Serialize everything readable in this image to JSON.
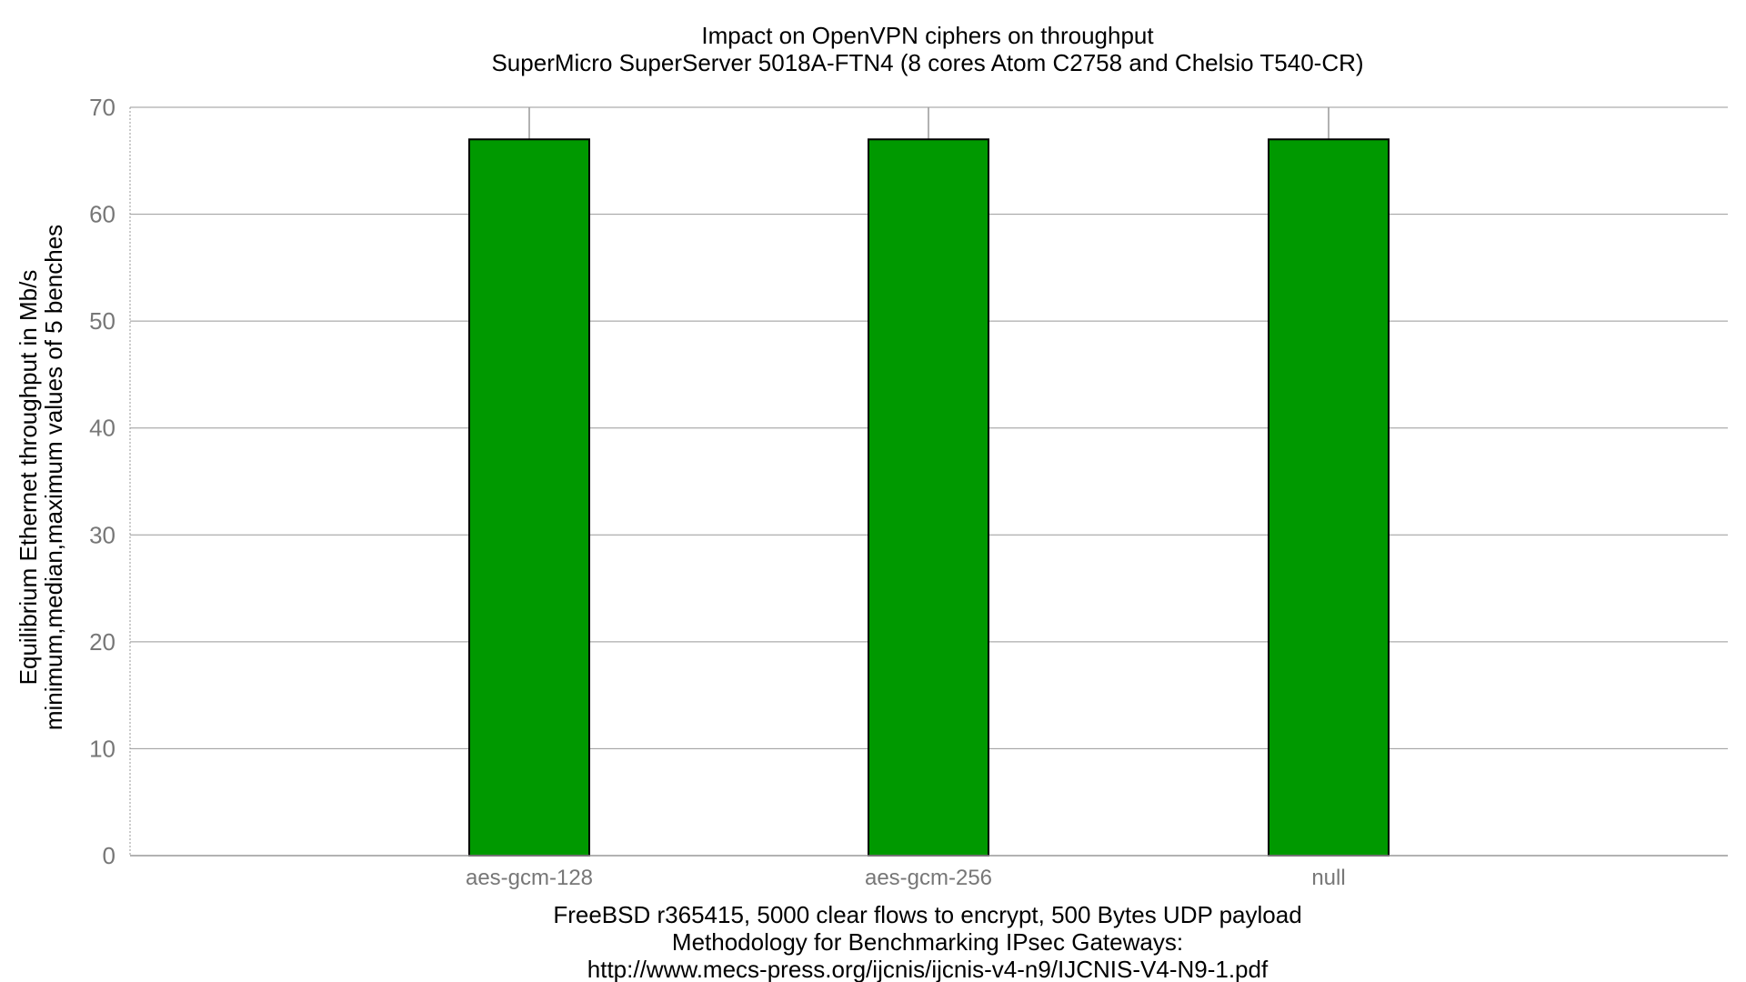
{
  "chart_data": {
    "type": "bar",
    "title": "Impact on OpenVPN ciphers on throughput",
    "subtitle": "SuperMicro SuperServer 5018A-FTN4 (8 cores Atom C2758 and Chelsio T540-CR)",
    "ylabel": "Equilibrium Ethernet throughput in Mb/s",
    "ylabel2": "minimum,median,maximum values of 5 benches",
    "xlabel": "FreeBSD r365415, 5000 clear flows to encrypt, 500 Bytes UDP payload",
    "xlabel2": "Methodology for Benchmarking IPsec Gateways:",
    "xlabel3": "http://www.mecs-press.org/ijcnis/ijcnis-v4-n9/IJCNIS-V4-N9-1.pdf",
    "categories": [
      "aes-gcm-128",
      "aes-gcm-256",
      "null"
    ],
    "values": [
      67,
      67,
      67
    ],
    "error_min": [
      67,
      67,
      67
    ],
    "error_max": [
      67,
      67,
      67
    ],
    "ylim": [
      0,
      70
    ],
    "yticks": [
      0,
      10,
      20,
      30,
      40,
      50,
      60,
      70
    ],
    "grid": true,
    "bar_color": "#009900",
    "bar_border_color": "#000000",
    "grid_color": "#999999"
  }
}
